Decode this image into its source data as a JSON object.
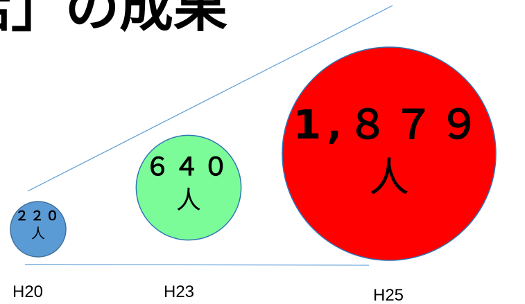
{
  "title": {
    "text": "話」の成果"
  },
  "chart_data": {
    "type": "bubble",
    "unit": "人",
    "categories": [
      "H20",
      "H23",
      "H25"
    ],
    "values": [
      220,
      640,
      1879
    ],
    "value_labels": [
      "２２０",
      "６４０",
      "1,８７９"
    ],
    "colors": [
      "#5b9bd5",
      "#7cfc98",
      "#ff0000"
    ],
    "stroke_colors": [
      "#41719c",
      "#2e75b6",
      "#2e75b6"
    ],
    "trend_line_color": "#5b9bd5"
  }
}
